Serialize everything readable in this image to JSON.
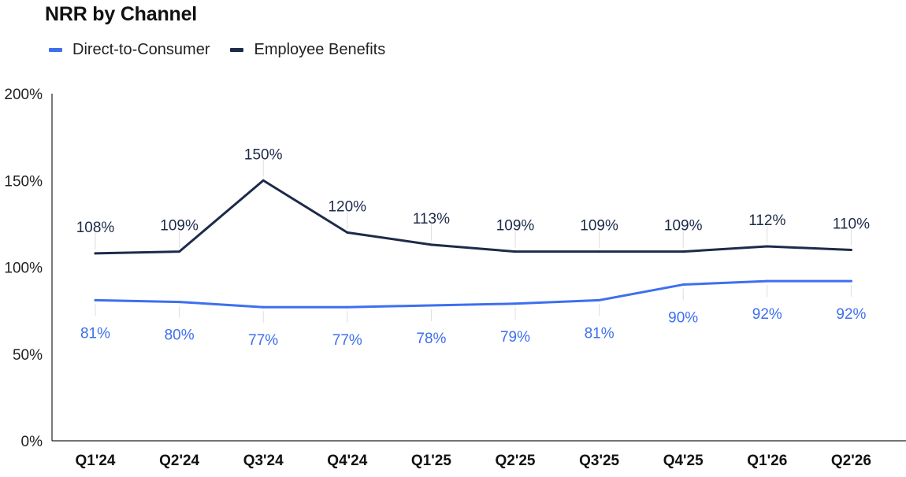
{
  "chart_data": {
    "type": "line",
    "title": "NRR by Channel",
    "categories": [
      "Q1'24",
      "Q2'24",
      "Q3'24",
      "Q4'24",
      "Q1'25",
      "Q2'25",
      "Q3'25",
      "Q4'25",
      "Q1'26",
      "Q2'26"
    ],
    "series": [
      {
        "name": "Direct-to-Consumer",
        "color": "#3d6ff0",
        "values": [
          81,
          80,
          77,
          77,
          78,
          79,
          81,
          90,
          92,
          92
        ],
        "labels": [
          "81%",
          "80%",
          "77%",
          "77%",
          "78%",
          "79%",
          "81%",
          "90%",
          "92%",
          "92%"
        ],
        "label_position": "below"
      },
      {
        "name": "Employee Benefits",
        "color": "#1d2b4a",
        "values": [
          108,
          109,
          150,
          120,
          113,
          109,
          109,
          109,
          112,
          110
        ],
        "labels": [
          "108%",
          "109%",
          "150%",
          "120%",
          "113%",
          "109%",
          "109%",
          "109%",
          "112%",
          "110%"
        ],
        "label_position": "above"
      }
    ],
    "ylim": [
      0,
      200
    ],
    "y_ticks": [
      0,
      50,
      100,
      150,
      200
    ],
    "y_tick_labels": [
      "0%",
      "50%",
      "100%",
      "150%",
      "200%"
    ],
    "xlabel": "",
    "ylabel": "",
    "grid": false,
    "legend_position": "top-left"
  }
}
